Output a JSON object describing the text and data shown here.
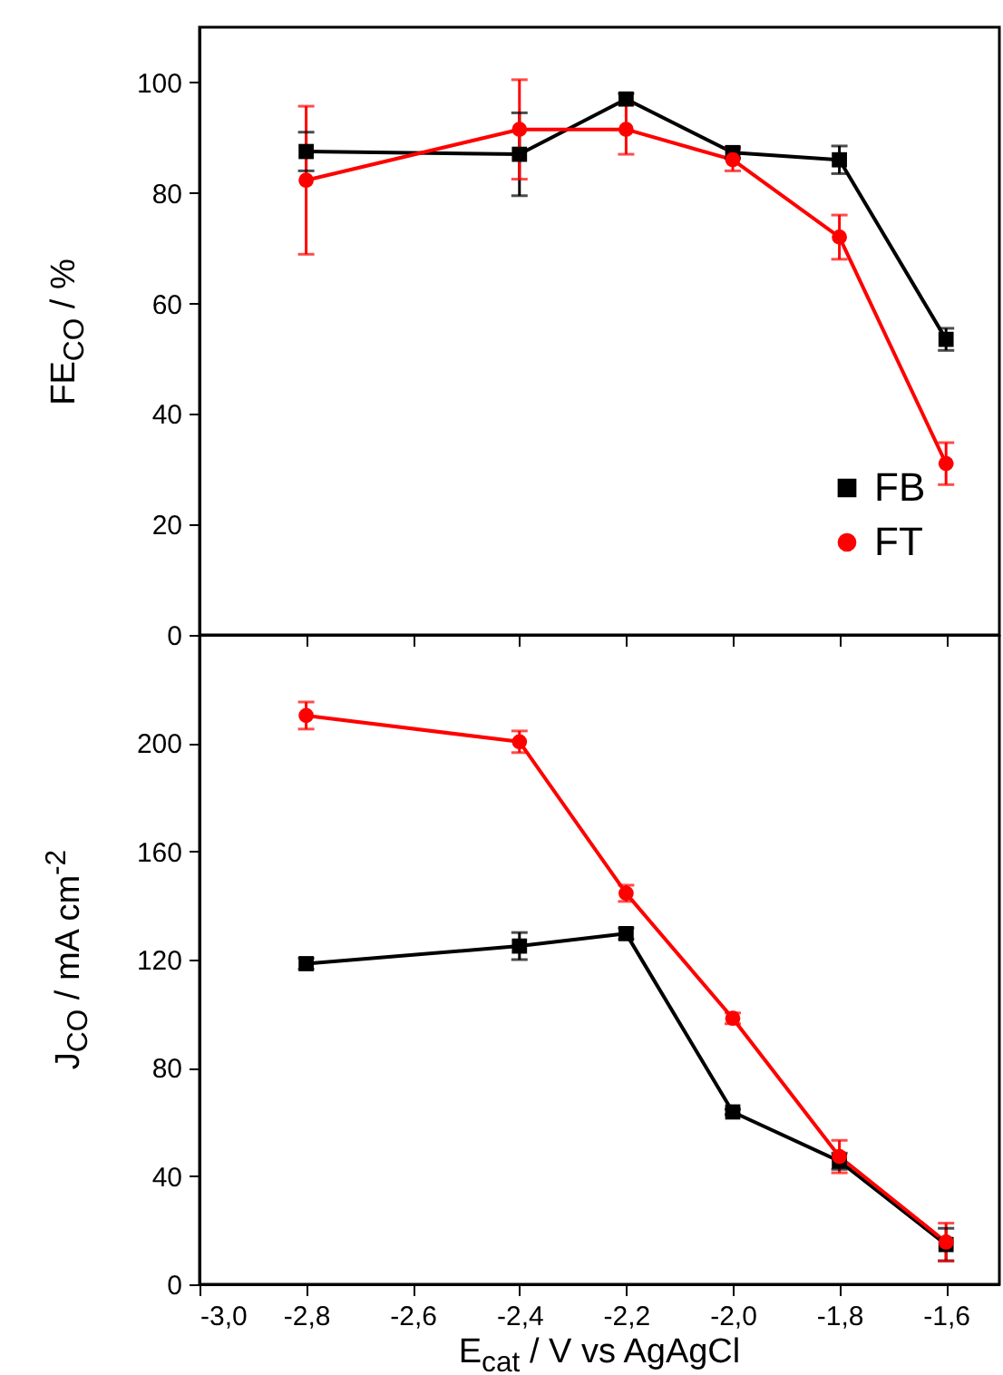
{
  "chart_data": [
    {
      "type": "line",
      "ylabel": "FE$_{CO}$ / %",
      "x": [
        -2.8,
        -2.4,
        -2.2,
        -2.0,
        -1.8,
        -1.6
      ],
      "xlim": [
        -3.0,
        -1.5
      ],
      "xticks": [
        {
          "value": -3.0,
          "label": null
        },
        {
          "value": -2.8,
          "label": null
        },
        {
          "value": -2.6,
          "label": null
        },
        {
          "value": -2.4,
          "label": null
        },
        {
          "value": -2.2,
          "label": null
        },
        {
          "value": -2.0,
          "label": null
        },
        {
          "value": -1.8,
          "label": null
        },
        {
          "value": -1.6,
          "label": null
        }
      ],
      "ylim": [
        0,
        110
      ],
      "yticks": [
        0,
        20,
        40,
        60,
        80,
        100
      ],
      "tick_labels": "y",
      "legend": "bottom right",
      "series": [
        {
          "name": "FB",
          "color": "#000000",
          "marker": "square",
          "values": [
            87.5,
            87,
            97,
            87.3,
            86,
            53.5
          ],
          "errors": [
            3.5,
            7.5,
            1,
            1,
            2.5,
            2
          ]
        },
        {
          "name": "FT",
          "color": "#ff0000",
          "marker": "circle",
          "values": [
            82.3,
            91.5,
            91.5,
            86,
            72,
            31
          ],
          "errors": [
            13.4,
            9,
            4.5,
            2,
            4,
            3.8
          ]
        }
      ]
    },
    {
      "type": "line",
      "ylabel": "J$_{CO}$ / mA cm$^{-2}$",
      "xlabel": "E$_{cat}$ / V vs AgAgCl",
      "x": [
        -2.8,
        -2.4,
        -2.2,
        -2.0,
        -1.8,
        -1.6
      ],
      "xlim": [
        -3.0,
        -1.5
      ],
      "xticks": [
        {
          "value": -3.0,
          "label": "-3,0"
        },
        {
          "value": -2.8,
          "label": "-2,8"
        },
        {
          "value": -2.6,
          "label": "-2,6"
        },
        {
          "value": -2.4,
          "label": "-2,4"
        },
        {
          "value": -2.2,
          "label": "-2,2"
        },
        {
          "value": -2.0,
          "label": "-2,0"
        },
        {
          "value": -1.8,
          "label": "-1,8"
        },
        {
          "value": -1.6,
          "label": "-1,6"
        }
      ],
      "ylim": [
        0,
        240
      ],
      "yticks": [
        0,
        40,
        80,
        120,
        160,
        200
      ],
      "series": [
        {
          "color": "#000000",
          "marker": "square",
          "values": [
            118.5,
            125,
            129.6,
            63.7,
            45.5,
            14.7
          ],
          "errors": [
            2,
            5,
            2,
            1,
            3,
            6
          ]
        },
        {
          "color": "#ff0000",
          "marker": "circle",
          "values": [
            210.2,
            200.5,
            144.5,
            98.3,
            47.2,
            15.6
          ],
          "errors": [
            5,
            4,
            3,
            2,
            6,
            7
          ]
        }
      ]
    }
  ]
}
